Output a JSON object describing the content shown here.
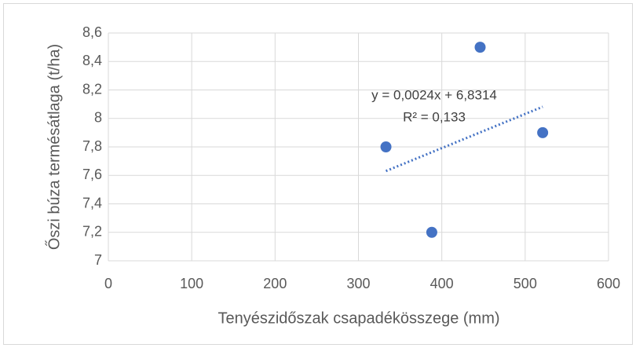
{
  "chart_data": {
    "type": "scatter",
    "x_label": "Tenyészidőszak csapadékösszege (mm)",
    "y_label": "Őszi búza termésátlaga (t/ha)",
    "x": [
      333,
      388,
      446,
      521
    ],
    "values": [
      7.8,
      7.2,
      8.5,
      7.9
    ],
    "color": "#4472c4",
    "xlim": [
      0,
      600
    ],
    "xticks": [
      0,
      100,
      200,
      300,
      400,
      500,
      600
    ],
    "ylim": [
      7,
      8.6
    ],
    "yticks": [
      7,
      {
        "value": 7.2,
        "label": "7,2"
      },
      {
        "value": 7.4,
        "label": "7,4"
      },
      {
        "value": 7.6,
        "label": "7,6"
      },
      {
        "value": 7.8,
        "label": "7,8"
      },
      8,
      {
        "value": 8.2,
        "label": "8,2"
      },
      {
        "value": 8.4,
        "label": "8,4"
      },
      {
        "value": 8.6,
        "label": "8,6"
      }
    ],
    "grid": true,
    "trendline": {
      "slope": 0.0024,
      "intercept": 6.8314,
      "equation": "y = 0,0024x + 6,8314",
      "r2": "R² = 0,133"
    }
  }
}
